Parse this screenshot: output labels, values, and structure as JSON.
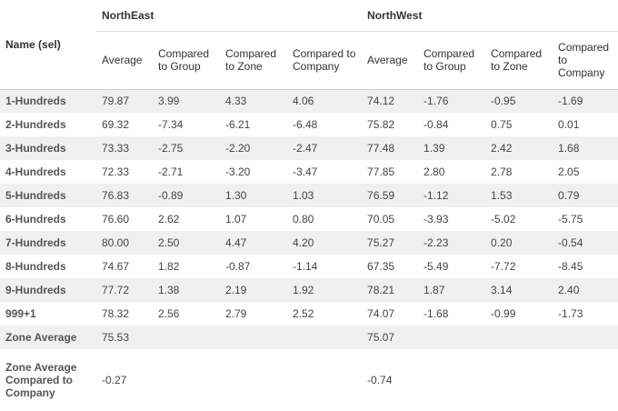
{
  "header": {
    "name": "Name (sel)",
    "groups": [
      "NorthEast",
      "NorthWest"
    ],
    "columns": [
      "Average",
      "Compared to Group",
      "Compared to Zone",
      "Compared to Company",
      "Average",
      "Compared to Group",
      "Compared to Zone",
      "Compared to Company"
    ]
  },
  "rows": [
    {
      "name": "1-Hundreds",
      "cells": [
        "79.87",
        "3.99",
        "4.33",
        "4.06",
        "74.12",
        "-1.76",
        "-0.95",
        "-1.69"
      ]
    },
    {
      "name": "2-Hundreds",
      "cells": [
        "69.32",
        "-7.34",
        "-6.21",
        "-6.48",
        "75.82",
        "-0.84",
        "0.75",
        "0.01"
      ]
    },
    {
      "name": "3-Hundreds",
      "cells": [
        "73.33",
        "-2.75",
        "-2.20",
        "-2.47",
        "77.48",
        "1.39",
        "2.42",
        "1.68"
      ]
    },
    {
      "name": "4-Hundreds",
      "cells": [
        "72.33",
        "-2.71",
        "-3.20",
        "-3.47",
        "77.85",
        "2.80",
        "2.78",
        "2.05"
      ]
    },
    {
      "name": "5-Hundreds",
      "cells": [
        "76.83",
        "-0.89",
        "1.30",
        "1.03",
        "76.59",
        "-1.12",
        "1.53",
        "0.79"
      ]
    },
    {
      "name": "6-Hundreds",
      "cells": [
        "76.60",
        "2.62",
        "1.07",
        "0.80",
        "70.05",
        "-3.93",
        "-5.02",
        "-5.75"
      ]
    },
    {
      "name": "7-Hundreds",
      "cells": [
        "80.00",
        "2.50",
        "4.47",
        "4.20",
        "75.27",
        "-2.23",
        "0.20",
        "-0.54"
      ]
    },
    {
      "name": "8-Hundreds",
      "cells": [
        "74.67",
        "1.82",
        "-0.87",
        "-1.14",
        "67.35",
        "-5.49",
        "-7.72",
        "-8.45"
      ]
    },
    {
      "name": "9-Hundreds",
      "cells": [
        "77.72",
        "1.38",
        "2.19",
        "1.92",
        "78.21",
        "1.87",
        "3.14",
        "2.40"
      ]
    },
    {
      "name": "999+1",
      "cells": [
        "78.32",
        "2.56",
        "2.79",
        "2.52",
        "74.07",
        "-1.68",
        "-0.99",
        "-1.73"
      ]
    }
  ],
  "summary": [
    {
      "name": "Zone Average",
      "northeast": "75.53",
      "northwest": "75.07"
    },
    {
      "name": "Zone Average Compared to Company",
      "northeast": "-0.27",
      "northwest": "-0.74"
    }
  ]
}
